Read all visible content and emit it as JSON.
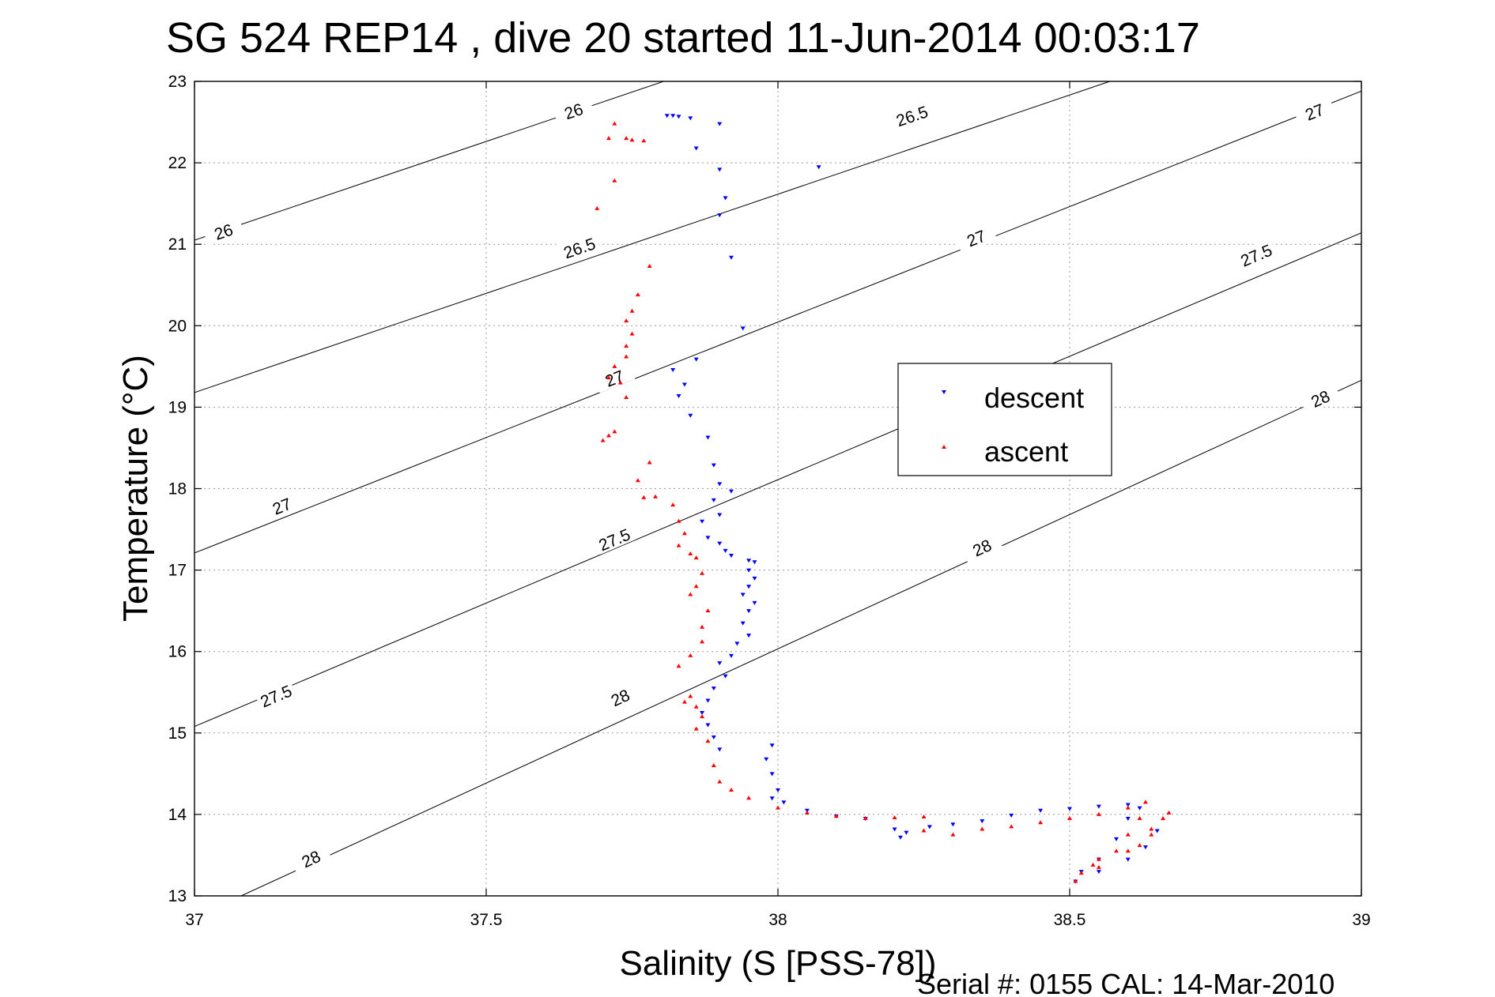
{
  "chart_data": {
    "type": "scatter",
    "title": "SG 524   REP14  , dive 20 started 11-Jun-2014 00:03:17",
    "xlabel": "Salinity (S [PSS-78])",
    "ylabel": "Temperature (°C)",
    "xlim": [
      37,
      39
    ],
    "ylim": [
      13,
      23
    ],
    "xticks": [
      "37",
      "37.5",
      "38",
      "38.5",
      "39"
    ],
    "yticks": [
      "13",
      "14",
      "15",
      "16",
      "17",
      "18",
      "19",
      "20",
      "21",
      "22",
      "23"
    ],
    "grid": true,
    "legend_position": "middle-right",
    "footer": "Serial #: 0155  CAL: 14-Mar-2010",
    "density_contours": [
      {
        "label": "26",
        "points": [
          [
            37.0,
            21.05
          ],
          [
            39.0,
            25.9
          ]
        ],
        "label_positions": [
          [
            37.05,
            21.15
          ],
          [
            37.65,
            22.63
          ]
        ]
      },
      {
        "label": "26.5",
        "points": [
          [
            37.0,
            19.18
          ],
          [
            39.0,
            24.05
          ]
        ],
        "label_positions": [
          [
            37.66,
            20.95
          ],
          [
            38.23,
            22.57
          ]
        ]
      },
      {
        "label": "27",
        "points": [
          [
            37.0,
            17.21
          ],
          [
            39.0,
            22.88
          ]
        ],
        "label_positions": [
          [
            37.15,
            17.78
          ],
          [
            37.72,
            19.35
          ],
          [
            38.34,
            21.07
          ],
          [
            38.92,
            22.62
          ]
        ]
      },
      {
        "label": "27.5",
        "points": [
          [
            37.0,
            15.08
          ],
          [
            39.0,
            21.14
          ]
        ],
        "label_positions": [
          [
            37.14,
            15.45
          ],
          [
            37.72,
            17.37
          ],
          [
            38.82,
            20.86
          ]
        ]
      },
      {
        "label": "28",
        "points": [
          [
            37.08,
            13.0
          ],
          [
            39.0,
            19.33
          ]
        ],
        "label_positions": [
          [
            37.2,
            13.45
          ],
          [
            37.73,
            15.43
          ],
          [
            38.35,
            17.27
          ],
          [
            38.93,
            19.1
          ]
        ]
      }
    ],
    "series": [
      {
        "name": "descent",
        "color": "#0000ff",
        "marker": "triangle-down",
        "points": [
          [
            37.81,
            22.58
          ],
          [
            37.82,
            22.58
          ],
          [
            37.83,
            22.57
          ],
          [
            37.85,
            22.55
          ],
          [
            37.9,
            22.48
          ],
          [
            37.86,
            22.18
          ],
          [
            37.9,
            21.92
          ],
          [
            38.07,
            21.95
          ],
          [
            37.91,
            21.57
          ],
          [
            37.9,
            21.36
          ],
          [
            37.92,
            20.84
          ],
          [
            37.94,
            19.97
          ],
          [
            37.86,
            19.59
          ],
          [
            37.82,
            19.46
          ],
          [
            37.84,
            19.28
          ],
          [
            37.83,
            19.14
          ],
          [
            37.85,
            18.9
          ],
          [
            37.88,
            18.63
          ],
          [
            37.89,
            18.29
          ],
          [
            37.9,
            18.06
          ],
          [
            37.92,
            17.97
          ],
          [
            37.89,
            17.86
          ],
          [
            37.9,
            17.68
          ],
          [
            37.87,
            17.6
          ],
          [
            37.88,
            17.4
          ],
          [
            37.9,
            17.33
          ],
          [
            37.91,
            17.24
          ],
          [
            37.92,
            17.18
          ],
          [
            37.95,
            17.12
          ],
          [
            37.96,
            17.1
          ],
          [
            37.95,
            17.0
          ],
          [
            37.96,
            16.9
          ],
          [
            37.95,
            16.8
          ],
          [
            37.94,
            16.7
          ],
          [
            37.96,
            16.6
          ],
          [
            37.95,
            16.5
          ],
          [
            37.94,
            16.35
          ],
          [
            37.95,
            16.2
          ],
          [
            37.93,
            16.1
          ],
          [
            37.92,
            15.95
          ],
          [
            37.9,
            15.86
          ],
          [
            37.91,
            15.7
          ],
          [
            37.89,
            15.55
          ],
          [
            37.88,
            15.4
          ],
          [
            37.87,
            15.25
          ],
          [
            37.88,
            15.1
          ],
          [
            37.89,
            14.95
          ],
          [
            37.9,
            14.8
          ],
          [
            37.99,
            14.85
          ],
          [
            37.98,
            14.68
          ],
          [
            37.99,
            14.5
          ],
          [
            38.0,
            14.3
          ],
          [
            37.99,
            14.2
          ],
          [
            38.01,
            14.15
          ],
          [
            38.05,
            14.05
          ],
          [
            38.1,
            13.98
          ],
          [
            38.15,
            13.95
          ],
          [
            38.2,
            13.82
          ],
          [
            38.21,
            13.72
          ],
          [
            38.22,
            13.78
          ],
          [
            38.26,
            13.85
          ],
          [
            38.3,
            13.88
          ],
          [
            38.35,
            13.92
          ],
          [
            38.4,
            13.99
          ],
          [
            38.45,
            14.05
          ],
          [
            38.5,
            14.07
          ],
          [
            38.55,
            14.1
          ],
          [
            38.6,
            14.12
          ],
          [
            38.62,
            14.08
          ],
          [
            38.6,
            13.95
          ],
          [
            38.58,
            13.7
          ],
          [
            38.55,
            13.45
          ],
          [
            38.52,
            13.3
          ],
          [
            38.51,
            13.18
          ],
          [
            38.55,
            13.3
          ],
          [
            38.6,
            13.45
          ],
          [
            38.63,
            13.6
          ],
          [
            38.65,
            13.8
          ]
        ]
      },
      {
        "name": "ascent",
        "color": "#ff0000",
        "marker": "triangle-up",
        "points": [
          [
            37.72,
            22.48
          ],
          [
            37.71,
            22.3
          ],
          [
            37.74,
            22.3
          ],
          [
            37.75,
            22.28
          ],
          [
            37.77,
            22.27
          ],
          [
            37.72,
            21.78
          ],
          [
            37.69,
            21.44
          ],
          [
            37.78,
            20.73
          ],
          [
            37.76,
            20.38
          ],
          [
            37.75,
            20.18
          ],
          [
            37.74,
            20.06
          ],
          [
            37.75,
            19.9
          ],
          [
            37.74,
            19.75
          ],
          [
            37.74,
            19.62
          ],
          [
            37.72,
            19.5
          ],
          [
            37.71,
            19.36
          ],
          [
            37.73,
            19.3
          ],
          [
            37.74,
            19.12
          ],
          [
            37.72,
            18.7
          ],
          [
            37.71,
            18.65
          ],
          [
            37.7,
            18.59
          ],
          [
            37.78,
            18.32
          ],
          [
            37.76,
            18.1
          ],
          [
            37.77,
            17.89
          ],
          [
            37.79,
            17.9
          ],
          [
            37.82,
            17.8
          ],
          [
            37.83,
            17.6
          ],
          [
            37.84,
            17.45
          ],
          [
            37.83,
            17.3
          ],
          [
            37.85,
            17.2
          ],
          [
            37.86,
            17.15
          ],
          [
            37.87,
            16.96
          ],
          [
            37.86,
            16.8
          ],
          [
            37.85,
            16.7
          ],
          [
            37.88,
            16.5
          ],
          [
            37.87,
            16.3
          ],
          [
            37.87,
            16.12
          ],
          [
            37.85,
            15.95
          ],
          [
            37.83,
            15.82
          ],
          [
            37.85,
            15.45
          ],
          [
            37.84,
            15.38
          ],
          [
            37.86,
            15.32
          ],
          [
            37.87,
            15.2
          ],
          [
            37.86,
            15.05
          ],
          [
            37.88,
            14.9
          ],
          [
            37.89,
            14.6
          ],
          [
            37.9,
            14.4
          ],
          [
            37.92,
            14.3
          ],
          [
            37.95,
            14.2
          ],
          [
            38.0,
            14.08
          ],
          [
            38.05,
            14.02
          ],
          [
            38.1,
            13.98
          ],
          [
            38.15,
            13.95
          ],
          [
            38.2,
            13.96
          ],
          [
            38.25,
            13.97
          ],
          [
            38.25,
            13.8
          ],
          [
            38.3,
            13.75
          ],
          [
            38.35,
            13.82
          ],
          [
            38.4,
            13.85
          ],
          [
            38.45,
            13.9
          ],
          [
            38.5,
            13.95
          ],
          [
            38.55,
            14.0
          ],
          [
            38.6,
            14.08
          ],
          [
            38.63,
            14.15
          ],
          [
            38.62,
            13.95
          ],
          [
            38.6,
            13.75
          ],
          [
            38.55,
            13.45
          ],
          [
            38.52,
            13.28
          ],
          [
            38.51,
            13.18
          ],
          [
            38.55,
            13.35
          ],
          [
            38.6,
            13.55
          ],
          [
            38.64,
            13.75
          ],
          [
            38.66,
            13.95
          ],
          [
            38.67,
            14.02
          ],
          [
            38.64,
            13.82
          ],
          [
            38.58,
            13.55
          ],
          [
            38.54,
            13.38
          ],
          [
            38.62,
            13.62
          ]
        ]
      }
    ]
  }
}
